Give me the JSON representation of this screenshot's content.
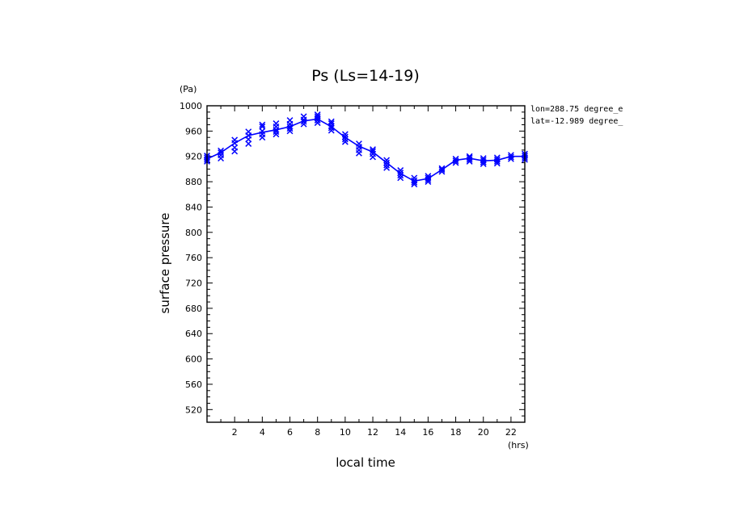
{
  "chart_data": {
    "type": "line",
    "title": "Ps (Ls=14-19)",
    "xlabel": "local time",
    "ylabel": "surface pressure",
    "x_unit": "(hrs)",
    "y_unit": "(Pa)",
    "xlim": [
      0,
      23
    ],
    "ylim": [
      500,
      1000
    ],
    "x_ticks": [
      2,
      4,
      6,
      8,
      10,
      12,
      14,
      16,
      18,
      20,
      22
    ],
    "y_ticks": [
      520,
      560,
      600,
      640,
      680,
      720,
      760,
      800,
      840,
      880,
      920,
      960,
      1000
    ],
    "annotations": [
      "lon=288.75 degree_e",
      "lat=-12.989 degree_"
    ],
    "grid": false,
    "colors": {
      "series": "#0000ff",
      "axes": "#000000"
    },
    "series": [
      {
        "kind": "mean-line",
        "x": [
          0,
          1,
          2,
          3,
          4,
          5,
          6,
          7,
          8,
          9,
          10,
          11,
          12,
          13,
          14,
          15,
          16,
          17,
          18,
          19,
          20,
          21,
          22,
          23
        ],
        "values": [
          916,
          926,
          941,
          953,
          958,
          962,
          967,
          976,
          979,
          967,
          950,
          936,
          927,
          910,
          893,
          881,
          885,
          899,
          914,
          917,
          913,
          914,
          920,
          920
        ]
      },
      {
        "kind": "scatter-x",
        "points": [
          [
            0,
            912
          ],
          [
            0,
            915
          ],
          [
            0,
            918
          ],
          [
            0,
            921
          ],
          [
            1,
            917
          ],
          [
            1,
            922
          ],
          [
            1,
            926
          ],
          [
            1,
            929
          ],
          [
            2,
            928
          ],
          [
            2,
            934
          ],
          [
            2,
            941
          ],
          [
            2,
            946
          ],
          [
            3,
            940
          ],
          [
            3,
            947
          ],
          [
            3,
            953
          ],
          [
            3,
            959
          ],
          [
            4,
            950
          ],
          [
            4,
            955
          ],
          [
            4,
            960
          ],
          [
            4,
            967
          ],
          [
            4,
            970
          ],
          [
            5,
            955
          ],
          [
            5,
            959
          ],
          [
            5,
            962
          ],
          [
            5,
            967
          ],
          [
            5,
            972
          ],
          [
            6,
            960
          ],
          [
            6,
            964
          ],
          [
            6,
            967
          ],
          [
            6,
            971
          ],
          [
            6,
            977
          ],
          [
            7,
            971
          ],
          [
            7,
            975
          ],
          [
            7,
            978
          ],
          [
            7,
            983
          ],
          [
            8,
            973
          ],
          [
            8,
            977
          ],
          [
            8,
            980
          ],
          [
            8,
            983
          ],
          [
            8,
            986
          ],
          [
            9,
            961
          ],
          [
            9,
            965
          ],
          [
            9,
            968
          ],
          [
            9,
            972
          ],
          [
            9,
            975
          ],
          [
            10,
            943
          ],
          [
            10,
            947
          ],
          [
            10,
            951
          ],
          [
            10,
            955
          ],
          [
            11,
            925
          ],
          [
            11,
            930
          ],
          [
            11,
            935
          ],
          [
            11,
            940
          ],
          [
            12,
            919
          ],
          [
            12,
            924
          ],
          [
            12,
            928
          ],
          [
            12,
            931
          ],
          [
            13,
            902
          ],
          [
            13,
            906
          ],
          [
            13,
            910
          ],
          [
            13,
            914
          ],
          [
            14,
            886
          ],
          [
            14,
            890
          ],
          [
            14,
            894
          ],
          [
            14,
            898
          ],
          [
            15,
            876
          ],
          [
            15,
            879
          ],
          [
            15,
            882
          ],
          [
            15,
            886
          ],
          [
            16,
            880
          ],
          [
            16,
            883
          ],
          [
            16,
            886
          ],
          [
            16,
            889
          ],
          [
            17,
            896
          ],
          [
            17,
            899
          ],
          [
            17,
            901
          ],
          [
            18,
            910
          ],
          [
            18,
            913
          ],
          [
            18,
            916
          ],
          [
            19,
            912
          ],
          [
            19,
            915
          ],
          [
            19,
            918
          ],
          [
            19,
            920
          ],
          [
            20,
            908
          ],
          [
            20,
            911
          ],
          [
            20,
            914
          ],
          [
            20,
            917
          ],
          [
            21,
            909
          ],
          [
            21,
            912
          ],
          [
            21,
            915
          ],
          [
            21,
            918
          ],
          [
            22,
            916
          ],
          [
            22,
            919
          ],
          [
            22,
            922
          ],
          [
            23,
            915
          ],
          [
            23,
            918
          ],
          [
            23,
            921
          ],
          [
            23,
            924
          ]
        ]
      }
    ]
  }
}
